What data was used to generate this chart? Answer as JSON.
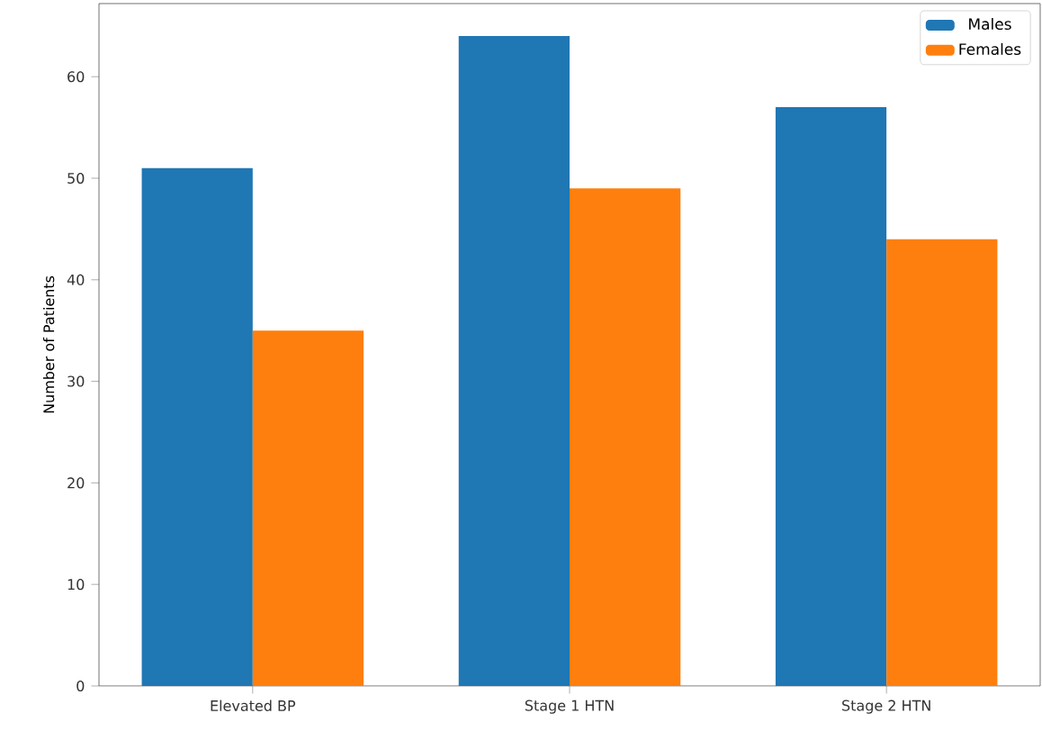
{
  "chart_data": {
    "type": "bar",
    "ylabel": "Number of Patients",
    "categories": [
      "Elevated BP",
      "Stage 1 HTN",
      "Stage 2 HTN"
    ],
    "series": [
      {
        "name": "Males",
        "color": "#1f77b4",
        "values": [
          51,
          64,
          57
        ]
      },
      {
        "name": "Females",
        "color": "#ff7f0e",
        "values": [
          35,
          49,
          44
        ]
      }
    ],
    "ylim": [
      0,
      67.2
    ],
    "yticks": [
      0,
      10,
      20,
      30,
      40,
      50,
      60
    ],
    "legend": "top right",
    "grid": false
  }
}
